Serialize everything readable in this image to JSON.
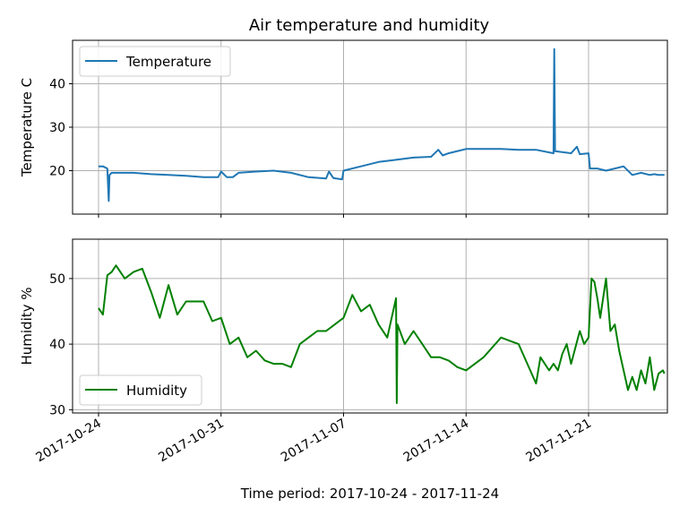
{
  "chart_data": [
    {
      "type": "line",
      "title": "Air temperature and humidity",
      "ylabel": "Temperature C",
      "xlabel": "",
      "x_range": [
        "2017-10-24",
        "2017-11-27"
      ],
      "ylim": [
        10,
        50
      ],
      "yticks": [
        20,
        30,
        40
      ],
      "grid": true,
      "legend_loc": "upper left",
      "series": [
        {
          "name": "Temperature",
          "color": "#1f77b4",
          "x": [
            "2017-10-24",
            "2017-10-24 06:00",
            "2017-10-24 12:00",
            "2017-10-24 14:00",
            "2017-10-24 15:00",
            "2017-10-24 18:00",
            "2017-10-25",
            "2017-10-26",
            "2017-10-27",
            "2017-10-28",
            "2017-10-29",
            "2017-10-30",
            "2017-10-30 20:00",
            "2017-10-31",
            "2017-10-31 08:00",
            "2017-10-31 16:00",
            "2017-11-01",
            "2017-11-02",
            "2017-11-03",
            "2017-11-04",
            "2017-11-05",
            "2017-11-06",
            "2017-11-06 04:00",
            "2017-11-06 10:00",
            "2017-11-06 22:00",
            "2017-11-07",
            "2017-11-08",
            "2017-11-09",
            "2017-11-10",
            "2017-11-11",
            "2017-11-12",
            "2017-11-12 10:00",
            "2017-11-12 16:00",
            "2017-11-13",
            "2017-11-14",
            "2017-11-15",
            "2017-11-16",
            "2017-11-17",
            "2017-11-18",
            "2017-11-19",
            "2017-11-19 01:00",
            "2017-11-19 02:00",
            "2017-11-20",
            "2017-11-20 08:00",
            "2017-11-20 12:00",
            "2017-11-21",
            "2017-11-21 02:00",
            "2017-11-21 12:00",
            "2017-11-22",
            "2017-11-22 12:00",
            "2017-11-23",
            "2017-11-23 12:00",
            "2017-11-24",
            "2017-11-24 12:00",
            "2017-11-24 18:00",
            "2017-11-25",
            "2017-11-25 08:00"
          ],
          "y": [
            21,
            21,
            20.5,
            13,
            19,
            19.5,
            19.5,
            19.5,
            19.2,
            19,
            18.8,
            18.5,
            18.5,
            19.8,
            18.5,
            18.5,
            19.5,
            19.8,
            20,
            19.5,
            18.5,
            18.2,
            19.8,
            18.3,
            18,
            20,
            21,
            22,
            22.5,
            23,
            23.2,
            24.8,
            23.5,
            24,
            25,
            25,
            25,
            24.8,
            24.8,
            24,
            48,
            24.5,
            24,
            25.5,
            23.8,
            24,
            20.5,
            20.5,
            20,
            20.5,
            21,
            19,
            19.5,
            19,
            19.2,
            19,
            19
          ]
        }
      ]
    },
    {
      "type": "line",
      "title": "",
      "ylabel": "Humidity %",
      "xlabel": "Time period: 2017-10-24 - 2017-11-24",
      "x_range": [
        "2017-10-24",
        "2017-11-27"
      ],
      "ylim": [
        29.5,
        56
      ],
      "yticks": [
        30,
        40,
        50
      ],
      "xticks": [
        "2017-10-24",
        "2017-10-31",
        "2017-11-07",
        "2017-11-14",
        "2017-11-21"
      ],
      "grid": true,
      "legend_loc": "lower left",
      "series": [
        {
          "name": "Humidity",
          "color": "#008000",
          "x": [
            "2017-10-24",
            "2017-10-24 06:00",
            "2017-10-24 12:00",
            "2017-10-24 18:00",
            "2017-10-25",
            "2017-10-25 12:00",
            "2017-10-26",
            "2017-10-26 12:00",
            "2017-10-27",
            "2017-10-27 12:00",
            "2017-10-28",
            "2017-10-28 12:00",
            "2017-10-29",
            "2017-10-29 12:00",
            "2017-10-30",
            "2017-10-30 12:00",
            "2017-10-31",
            "2017-10-31 12:00",
            "2017-11-01",
            "2017-11-01 12:00",
            "2017-11-02",
            "2017-11-02 12:00",
            "2017-11-03",
            "2017-11-03 12:00",
            "2017-11-04",
            "2017-11-04 12:00",
            "2017-11-05",
            "2017-11-05 12:00",
            "2017-11-06",
            "2017-11-06 12:00",
            "2017-11-07",
            "2017-11-07 12:00",
            "2017-11-08",
            "2017-11-08 12:00",
            "2017-11-09",
            "2017-11-09 12:00",
            "2017-11-10",
            "2017-11-10 01:00",
            "2017-11-10 02:00",
            "2017-11-10 12:00",
            "2017-11-11",
            "2017-11-11 12:00",
            "2017-11-12",
            "2017-11-12 12:00",
            "2017-11-13",
            "2017-11-13 12:00",
            "2017-11-14",
            "2017-11-15",
            "2017-11-16",
            "2017-11-17",
            "2017-11-18",
            "2017-11-18 06:00",
            "2017-11-18 18:00",
            "2017-11-19",
            "2017-11-19 06:00",
            "2017-11-19 12:00",
            "2017-11-19 18:00",
            "2017-11-20",
            "2017-11-20 12:00",
            "2017-11-20 18:00",
            "2017-11-21",
            "2017-11-21 04:00",
            "2017-11-21 08:00",
            "2017-11-21 12:00",
            "2017-11-21 16:00",
            "2017-11-22",
            "2017-11-22 06:00",
            "2017-11-22 12:00",
            "2017-11-22 18:00",
            "2017-11-23",
            "2017-11-23 06:00",
            "2017-11-23 12:00",
            "2017-11-23 18:00",
            "2017-11-24",
            "2017-11-24 06:00",
            "2017-11-24 12:00",
            "2017-11-24 18:00",
            "2017-11-25",
            "2017-11-25 06:00",
            "2017-11-25 08:00"
          ],
          "y": [
            45.5,
            44.5,
            50.5,
            51,
            52,
            50,
            51,
            51.5,
            48,
            44,
            49,
            44.5,
            46.5,
            46.5,
            46.5,
            43.5,
            44,
            40,
            41,
            38,
            39,
            37.5,
            37,
            37,
            36.5,
            40,
            41,
            42,
            42,
            43,
            44,
            47.5,
            45,
            46,
            43,
            41,
            47,
            31,
            43,
            40,
            42,
            40,
            38,
            38,
            37.5,
            36.5,
            36,
            38,
            41,
            40,
            34,
            38,
            36,
            37,
            36,
            38.5,
            40,
            37,
            42,
            40,
            41,
            50,
            49.5,
            47,
            44,
            50,
            42,
            43,
            39,
            36,
            33,
            35,
            33,
            36,
            34,
            38,
            33,
            35.5,
            36,
            35.5
          ]
        }
      ]
    }
  ]
}
